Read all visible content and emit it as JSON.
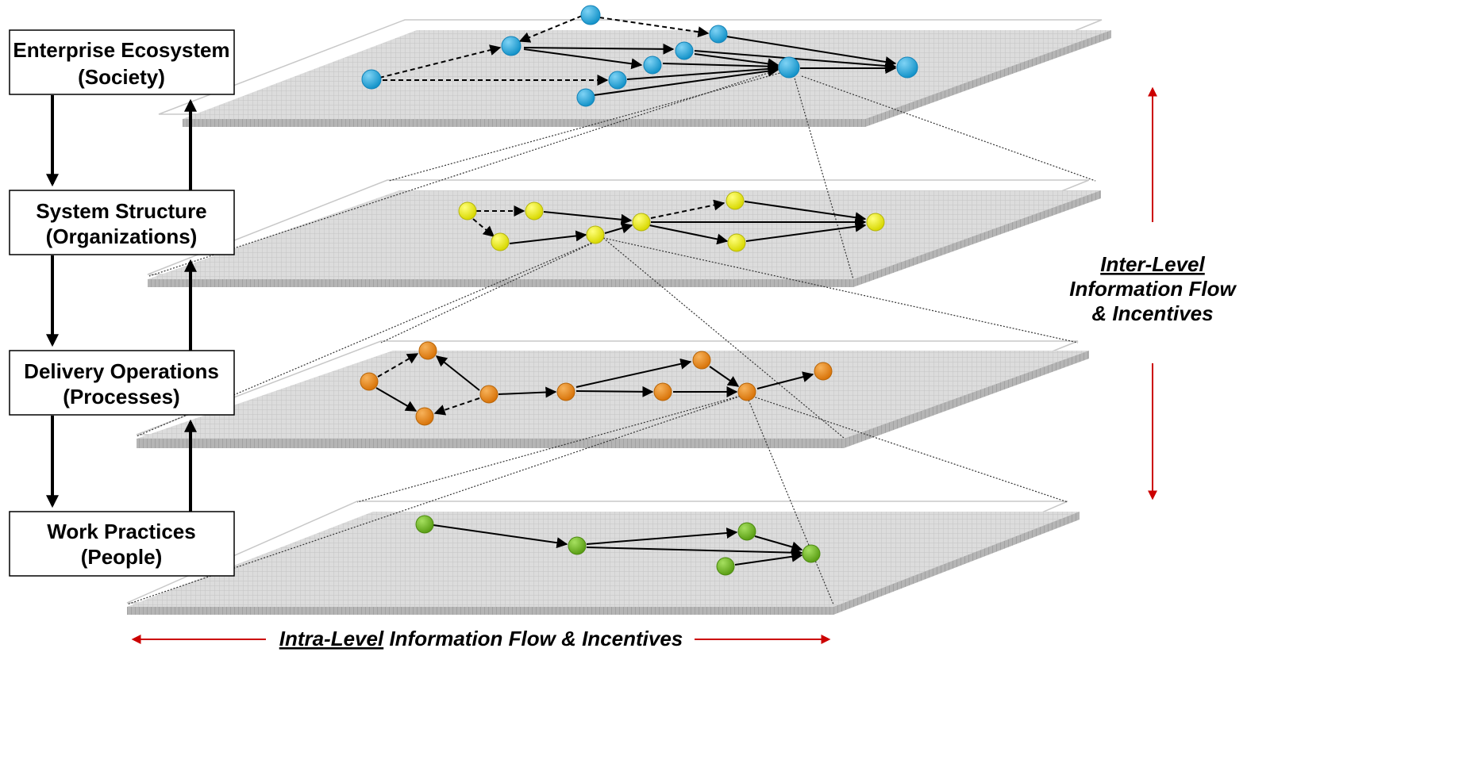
{
  "levels": [
    {
      "id": "ecosystem",
      "title": "Enterprise Ecosystem",
      "subtitle": "(Society)",
      "node_color": "#1ea8dc",
      "node_stroke": "#1383b8"
    },
    {
      "id": "system",
      "title": "System Structure",
      "subtitle": "(Organizations)",
      "node_color": "#e6e619",
      "node_stroke": "#b5b50f"
    },
    {
      "id": "operations",
      "title": "Delivery Operations",
      "subtitle": "(Processes)",
      "node_color": "#e8850f",
      "node_stroke": "#b86508"
    },
    {
      "id": "practices",
      "title": "Work Practices",
      "subtitle": "(People)",
      "node_color": "#6cb81e",
      "node_stroke": "#4d8a12"
    }
  ],
  "inter_level": {
    "underlined": "Inter-Level",
    "line2": "Information Flow",
    "line3": "& Incentives"
  },
  "intra_level": {
    "underlined": "Intra-Level",
    "rest": " Information Flow & Incentives"
  },
  "colors": {
    "arrow_red": "#cc0000",
    "plane_fill": "#d9d9d9",
    "plane_edge": "#9a9a9a"
  }
}
